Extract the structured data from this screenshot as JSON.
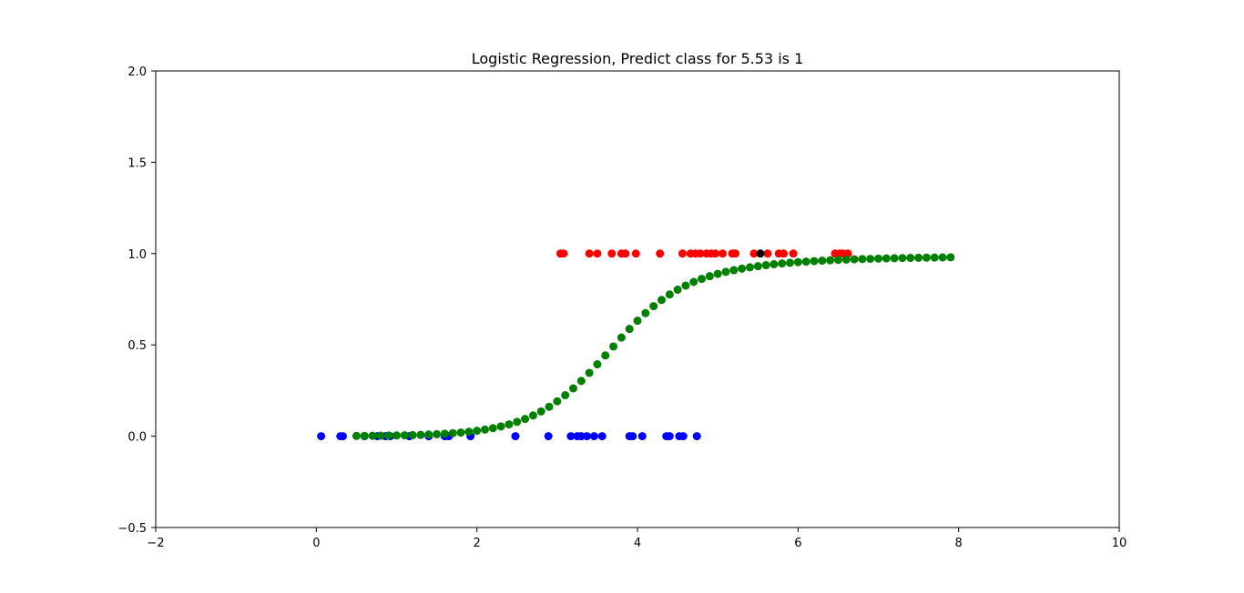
{
  "chart_data": {
    "type": "scatter",
    "title": "Logistic Regression, Predict class for 5.53 is 1",
    "xlabel": "",
    "ylabel": "",
    "xlim": [
      -2,
      10
    ],
    "ylim": [
      -0.5,
      2.0
    ],
    "x_ticks": [
      -2,
      0,
      2,
      4,
      6,
      8,
      10
    ],
    "x_tick_labels": [
      "−2",
      "0",
      "2",
      "4",
      "6",
      "8",
      "10"
    ],
    "y_ticks": [
      -0.5,
      0.0,
      0.5,
      1.0,
      1.5,
      2.0
    ],
    "y_tick_labels": [
      "−0.5",
      "0.0",
      "0.5",
      "1.0",
      "1.5",
      "2.0"
    ],
    "grid": false,
    "legend": "none",
    "series": [
      {
        "color": "#0000ff",
        "points": [
          [
            0.06,
            0
          ],
          [
            0.3,
            0
          ],
          [
            0.33,
            0
          ],
          [
            0.6,
            0
          ],
          [
            0.76,
            0
          ],
          [
            0.86,
            0
          ],
          [
            0.92,
            0
          ],
          [
            1.16,
            0
          ],
          [
            1.4,
            0
          ],
          [
            1.6,
            0
          ],
          [
            1.65,
            0
          ],
          [
            1.92,
            0
          ],
          [
            2.48,
            0
          ],
          [
            2.89,
            0
          ],
          [
            3.17,
            0
          ],
          [
            3.25,
            0
          ],
          [
            3.3,
            0
          ],
          [
            3.37,
            0
          ],
          [
            3.46,
            0
          ],
          [
            3.56,
            0
          ],
          [
            3.9,
            0
          ],
          [
            3.94,
            0
          ],
          [
            4.06,
            0
          ],
          [
            4.36,
            0
          ],
          [
            4.4,
            0
          ],
          [
            4.52,
            0
          ],
          [
            4.57,
            0
          ],
          [
            4.74,
            0
          ]
        ]
      },
      {
        "color": "#ff0000",
        "points": [
          [
            3.04,
            1
          ],
          [
            3.08,
            1
          ],
          [
            3.4,
            1
          ],
          [
            3.5,
            1
          ],
          [
            3.68,
            1
          ],
          [
            3.8,
            1
          ],
          [
            3.85,
            1
          ],
          [
            3.98,
            1
          ],
          [
            4.28,
            1
          ],
          [
            4.56,
            1
          ],
          [
            4.66,
            1
          ],
          [
            4.72,
            1
          ],
          [
            4.78,
            1
          ],
          [
            4.86,
            1
          ],
          [
            4.92,
            1
          ],
          [
            4.97,
            1
          ],
          [
            5.06,
            1
          ],
          [
            5.18,
            1
          ],
          [
            5.22,
            1
          ],
          [
            5.45,
            1
          ],
          [
            5.62,
            1
          ],
          [
            5.76,
            1
          ],
          [
            5.82,
            1
          ],
          [
            5.94,
            1
          ],
          [
            6.46,
            1
          ],
          [
            6.52,
            1
          ],
          [
            6.56,
            1
          ],
          [
            6.62,
            1
          ]
        ]
      },
      {
        "color": "#008000",
        "x_start": 0.5,
        "x_step": 0.1,
        "values": [
          0.0015,
          0.0018,
          0.0022,
          0.0027,
          0.0033,
          0.004,
          0.0049,
          0.006,
          0.0073,
          0.009,
          0.011,
          0.0134,
          0.0164,
          0.02,
          0.0244,
          0.0298,
          0.0362,
          0.0441,
          0.0535,
          0.0649,
          0.0784,
          0.0945,
          0.1135,
          0.1357,
          0.1614,
          0.191,
          0.2244,
          0.2617,
          0.3027,
          0.3469,
          0.3937,
          0.4422,
          0.4913,
          0.5401,
          0.5874,
          0.6323,
          0.674,
          0.712,
          0.746,
          0.776,
          0.8022,
          0.825,
          0.8446,
          0.8615,
          0.8762,
          0.8888,
          0.8998,
          0.9093,
          0.9176,
          0.9248,
          0.9311,
          0.9366,
          0.9415,
          0.9458,
          0.9496,
          0.953,
          0.956,
          0.9587,
          0.9611,
          0.9633,
          0.9652,
          0.967,
          0.9686,
          0.97,
          0.9713,
          0.9725,
          0.9736,
          0.9746,
          0.9755,
          0.9763,
          0.9771,
          0.9778,
          0.9784,
          0.979,
          0.9796
        ]
      },
      {
        "color": "#000000",
        "points": [
          [
            5.53,
            1
          ]
        ]
      }
    ]
  }
}
